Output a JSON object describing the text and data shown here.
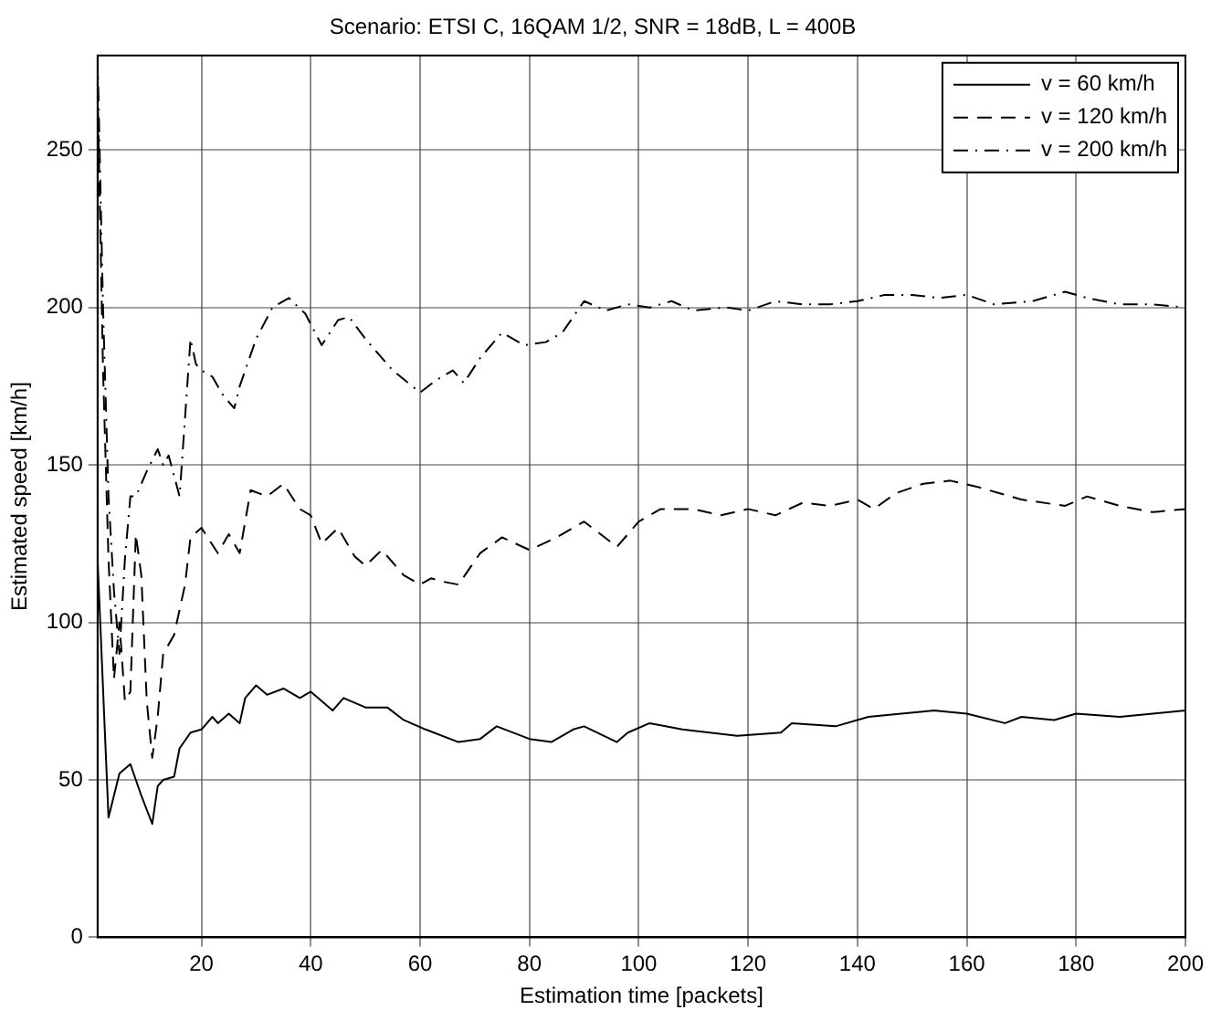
{
  "chart_data": {
    "type": "line",
    "title": "Scenario: ETSI C, 16QAM 1/2, SNR = 18dB, L = 400B",
    "xlabel": "Estimation time [packets]",
    "ylabel": "Estimated speed [km/h]",
    "xlim": [
      1,
      200
    ],
    "ylim": [
      0,
      280
    ],
    "xticks": [
      20,
      40,
      60,
      80,
      100,
      120,
      140,
      160,
      180,
      200
    ],
    "yticks": [
      0,
      50,
      100,
      150,
      200,
      250
    ],
    "grid": true,
    "legend": "top right",
    "marker": "none",
    "series": [
      {
        "name": "v = 60 km/h",
        "color": "#000000",
        "line_style": "solid",
        "x": [
          1,
          3,
          5,
          7,
          9,
          11,
          12,
          13,
          15,
          16,
          18,
          20,
          22,
          23,
          25,
          27,
          28,
          30,
          32,
          35,
          38,
          40,
          44,
          46,
          50,
          54,
          57,
          61,
          67,
          71,
          74,
          80,
          84,
          88,
          90,
          96,
          98,
          102,
          108,
          118,
          126,
          128,
          136,
          142,
          148,
          154,
          160,
          167,
          170,
          176,
          180,
          188,
          194,
          200
        ],
        "values": [
          120,
          38,
          52,
          55,
          45,
          36,
          48,
          50,
          51,
          60,
          65,
          66,
          70,
          68,
          71,
          68,
          76,
          80,
          77,
          79,
          76,
          78,
          72,
          76,
          73,
          73,
          69,
          66,
          62,
          63,
          67,
          63,
          62,
          66,
          67,
          62,
          65,
          68,
          66,
          64,
          65,
          68,
          67,
          70,
          71,
          72,
          71,
          68,
          70,
          69,
          71,
          70,
          71,
          72
        ]
      },
      {
        "name": "v = 120 km/h",
        "color": "#000000",
        "line_style": "dashed",
        "x": [
          1,
          2,
          3,
          4,
          5,
          6,
          7,
          8,
          9,
          10,
          11,
          12,
          13,
          15,
          17,
          18,
          20,
          23,
          25,
          27,
          29,
          32,
          35,
          38,
          40,
          42,
          45,
          48,
          50,
          53,
          57,
          60,
          62,
          64,
          67,
          71,
          75,
          80,
          85,
          90,
          96,
          100,
          104,
          110,
          115,
          120,
          125,
          130,
          135,
          140,
          143,
          147,
          152,
          157,
          162,
          170,
          178,
          182,
          188,
          194,
          200
        ],
        "values": [
          270,
          180,
          120,
          82,
          100,
          75,
          78,
          128,
          115,
          75,
          57,
          70,
          90,
          96,
          112,
          127,
          130,
          122,
          128,
          122,
          142,
          140,
          144,
          136,
          134,
          125,
          130,
          121,
          118,
          123,
          115,
          112,
          114,
          113,
          112,
          122,
          127,
          123,
          127,
          132,
          124,
          132,
          136,
          136,
          134,
          136,
          134,
          138,
          137,
          139,
          136,
          141,
          144,
          145,
          143,
          139,
          137,
          140,
          137,
          135,
          136
        ]
      },
      {
        "name": "v = 200 km/h",
        "color": "#000000",
        "line_style": "dashdot",
        "x": [
          1,
          2,
          3,
          4,
          5,
          6,
          7,
          8,
          10,
          12,
          13,
          14,
          16,
          18,
          19,
          20,
          22,
          24,
          26,
          27,
          30,
          33,
          36,
          39,
          42,
          45,
          47,
          50,
          55,
          60,
          63,
          66,
          68,
          71,
          75,
          79,
          83,
          86,
          90,
          94,
          98,
          102,
          106,
          110,
          116,
          120,
          125,
          130,
          135,
          140,
          145,
          150,
          155,
          160,
          165,
          172,
          178,
          182,
          188,
          194,
          200
        ],
        "values": [
          280,
          200,
          140,
          110,
          90,
          120,
          140,
          140,
          148,
          155,
          150,
          153,
          140,
          190,
          182,
          180,
          178,
          172,
          168,
          175,
          190,
          200,
          203,
          198,
          188,
          196,
          197,
          190,
          180,
          173,
          177,
          180,
          176,
          184,
          192,
          188,
          189,
          192,
          202,
          199,
          201,
          200,
          202,
          199,
          200,
          199,
          202,
          201,
          201,
          202,
          204,
          204,
          203,
          204,
          201,
          202,
          205,
          203,
          201,
          201,
          200
        ]
      }
    ]
  }
}
